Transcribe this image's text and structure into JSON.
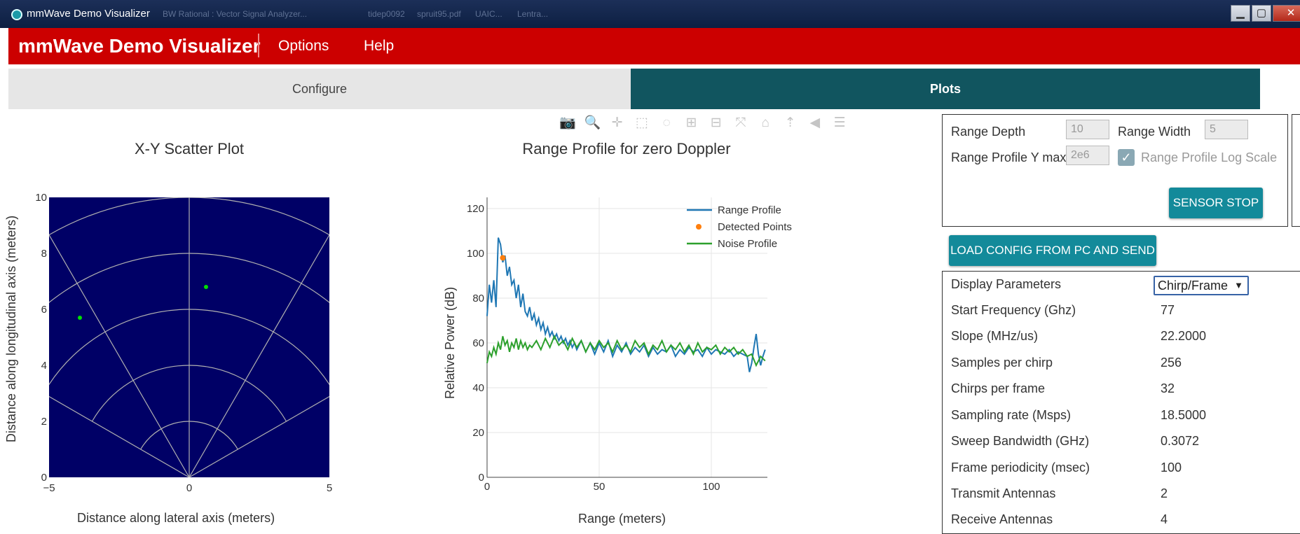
{
  "window": {
    "title": "mmWave Demo Visualizer",
    "ghost_tabs": [
      "BW Rational : Vector Signal Analyzer...",
      "tidep0092",
      "spruit95.pdf",
      "UAIC...",
      "Lentra..."
    ],
    "controls": [
      "▁",
      "▢",
      "✕"
    ]
  },
  "appbar": {
    "brand": "mmWave Demo Visualizer",
    "menu": [
      "Options",
      "Help"
    ]
  },
  "tabs": {
    "configure": "Configure",
    "plots": "Plots"
  },
  "toolbar": {
    "icons": [
      "camera-icon",
      "zoom-icon",
      "pan-icon",
      "box-select-icon",
      "lasso-icon",
      "zoom-in-icon",
      "zoom-out-icon",
      "autoscale-icon",
      "home-icon",
      "spike-lines-icon",
      "hover-closest-icon",
      "hover-compare-icon"
    ],
    "glyphs": [
      "📷",
      "🔍",
      "✛",
      "⬚",
      "◌",
      "⊞",
      "⊟",
      "⤧",
      "⌂",
      "⇡",
      "◀",
      "☰"
    ]
  },
  "scatter": {
    "title": "X-Y Scatter Plot",
    "xlabel": "Distance along lateral axis (meters)",
    "ylabel": "Distance along longitudinal axis (meters)"
  },
  "range_plot": {
    "title": "Range Profile for zero Doppler",
    "xlabel": "Range (meters)",
    "ylabel": "Relative Power (dB)"
  },
  "chart_data": [
    {
      "type": "scatter",
      "title": "X-Y Scatter Plot",
      "xlabel": "Distance along lateral axis (meters)",
      "ylabel": "Distance along longitudinal axis (meters)",
      "xlim": [
        -5,
        5
      ],
      "ylim": [
        0,
        10
      ],
      "x_ticks": [
        "−5",
        "0",
        "5"
      ],
      "y_ticks": [
        "0",
        "2",
        "4",
        "6",
        "8",
        "10"
      ],
      "points": [
        {
          "x": -3.9,
          "y": 5.7
        },
        {
          "x": 0.6,
          "y": 6.8
        }
      ],
      "background": "#000066",
      "point_color": "#00e000",
      "grid": "polar arcs at 2,4,6,8,10 m; radial lines at 0,±30,±60 deg"
    },
    {
      "type": "line",
      "title": "Range Profile for zero Doppler",
      "xlabel": "Range (meters)",
      "ylabel": "Relative Power (dB)",
      "xlim": [
        0,
        125
      ],
      "ylim": [
        0,
        125
      ],
      "x_ticks": [
        "0",
        "50",
        "100"
      ],
      "y_ticks": [
        "0",
        "20",
        "40",
        "60",
        "80",
        "100",
        "120"
      ],
      "legend_position": "top-right",
      "series": [
        {
          "name": "Range Profile",
          "color": "#1f77b4",
          "x": [
            0,
            1,
            2,
            3,
            4,
            5,
            6,
            7,
            8,
            9,
            10,
            11,
            12,
            13,
            14,
            15,
            16,
            17,
            18,
            19,
            20,
            21,
            22,
            23,
            24,
            25,
            26,
            27,
            28,
            29,
            30,
            31,
            32,
            33,
            34,
            35,
            36,
            37,
            38,
            39,
            40,
            42,
            44,
            46,
            48,
            50,
            52,
            54,
            56,
            58,
            60,
            62,
            64,
            66,
            68,
            70,
            72,
            74,
            76,
            78,
            80,
            82,
            84,
            86,
            88,
            90,
            92,
            94,
            96,
            98,
            100,
            102,
            104,
            106,
            108,
            110,
            112,
            114,
            116,
            117,
            118,
            119,
            120,
            121,
            122,
            123,
            124
          ],
          "values": [
            72,
            86,
            78,
            88,
            76,
            107,
            104,
            96,
            99,
            90,
            94,
            86,
            88,
            80,
            86,
            76,
            82,
            74,
            72,
            76,
            70,
            73,
            68,
            71,
            66,
            69,
            64,
            67,
            63,
            65,
            62,
            64,
            61,
            63,
            60,
            62,
            59,
            61,
            58,
            60,
            57,
            61,
            56,
            60,
            55,
            60,
            56,
            61,
            54,
            59,
            56,
            60,
            55,
            58,
            56,
            59,
            54,
            58,
            55,
            57,
            56,
            59,
            54,
            57,
            55,
            58,
            56,
            57,
            54,
            58,
            55,
            57,
            56,
            55,
            57,
            54,
            56,
            55,
            54,
            47,
            51,
            58,
            64,
            55,
            50,
            54,
            57
          ]
        },
        {
          "name": "Detected Points",
          "color": "#ff7f0e",
          "x": [
            7
          ],
          "values": [
            98
          ]
        },
        {
          "name": "Noise Profile",
          "color": "#2ca02c",
          "x": [
            0,
            1,
            2,
            3,
            4,
            5,
            6,
            7,
            8,
            9,
            10,
            11,
            12,
            13,
            14,
            15,
            16,
            17,
            18,
            19,
            20,
            22,
            24,
            26,
            28,
            30,
            32,
            34,
            36,
            38,
            40,
            42,
            44,
            46,
            48,
            50,
            52,
            54,
            56,
            58,
            60,
            62,
            64,
            66,
            68,
            70,
            72,
            74,
            76,
            78,
            80,
            82,
            84,
            86,
            88,
            90,
            92,
            94,
            96,
            98,
            100,
            102,
            104,
            106,
            108,
            110,
            112,
            114,
            116,
            118,
            120,
            122,
            124
          ],
          "values": [
            51,
            56,
            54,
            58,
            55,
            60,
            57,
            63,
            59,
            61,
            56,
            60,
            58,
            62,
            57,
            61,
            58,
            60,
            57,
            59,
            58,
            61,
            57,
            62,
            58,
            63,
            59,
            61,
            57,
            62,
            58,
            61,
            56,
            60,
            57,
            61,
            58,
            60,
            56,
            61,
            57,
            59,
            56,
            61,
            58,
            60,
            55,
            59,
            57,
            61,
            56,
            59,
            57,
            60,
            56,
            59,
            55,
            60,
            56,
            58,
            57,
            59,
            55,
            58,
            56,
            58,
            55,
            57,
            54,
            55,
            50,
            54,
            52
          ]
        }
      ]
    }
  ],
  "range_controls": {
    "range_depth_label": "Range Depth",
    "range_depth_value": "10",
    "range_width_label": "Range Width",
    "range_width_value": "5",
    "ymax_label": "Range Profile Y max",
    "ymax_value": "2e6",
    "logscale_label": "Range Profile Log Scale",
    "logscale_checked": true,
    "sensor_stop": "SENSOR STOP"
  },
  "load_config": "LOAD CONFIG FROM PC AND SEND",
  "display_params": {
    "label": "Display Parameters",
    "select": "Chirp/Frame",
    "rows": [
      {
        "k": "Start Frequency (Ghz)",
        "v": "77"
      },
      {
        "k": "Slope (MHz/us)",
        "v": "22.2000"
      },
      {
        "k": "Samples per chirp",
        "v": "256"
      },
      {
        "k": "Chirps per frame",
        "v": "32"
      },
      {
        "k": "Sampling rate (Msps)",
        "v": "18.5000"
      },
      {
        "k": "Sweep Bandwidth (GHz)",
        "v": "0.3072"
      },
      {
        "k": "Frame periodicity (msec)",
        "v": "100"
      },
      {
        "k": "Transmit Antennas",
        "v": "2"
      },
      {
        "k": "Receive Antennas",
        "v": "4"
      }
    ]
  }
}
